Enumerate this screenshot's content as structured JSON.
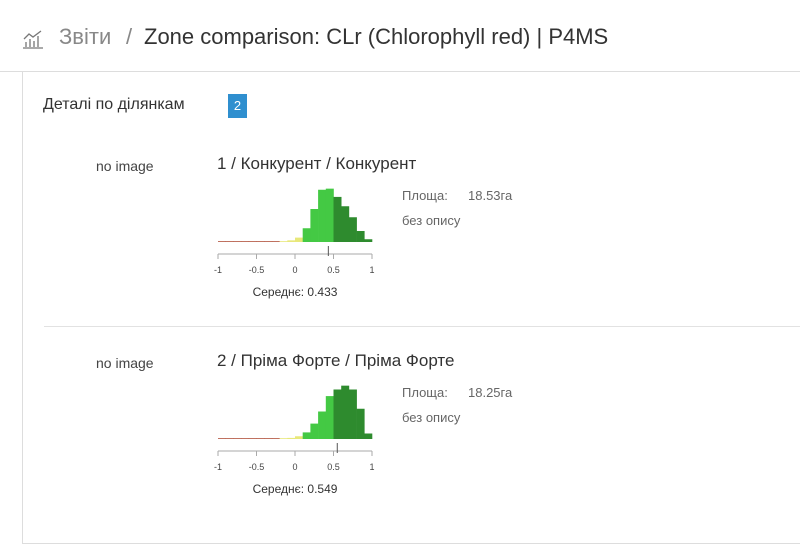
{
  "header": {
    "breadcrumb_root": "Звіти",
    "separator": "/",
    "page_title": "Zone comparison: CLr (Chlorophyll red) | P4MS"
  },
  "section": {
    "title": "Деталі по ділянкам",
    "count": 2
  },
  "zones": [
    {
      "image": "no image",
      "title": "1 / Конкурент / Конкурент",
      "area_label": "Площа:",
      "area": "18.53га",
      "description": "без опису",
      "chart_data": {
        "type": "histogram",
        "bins": [
          -1,
          -0.9,
          -0.8,
          -0.7,
          -0.6,
          -0.5,
          -0.4,
          -0.3,
          -0.2,
          -0.1,
          0,
          0.1,
          0.2,
          0.3,
          0.4,
          0.5,
          0.6,
          0.7,
          0.8,
          0.9,
          1
        ],
        "values": [
          0,
          0,
          0.01,
          0.01,
          0.01,
          0.01,
          0.01,
          0.01,
          0.01,
          0.03,
          0.08,
          0.25,
          0.6,
          0.95,
          0.97,
          0.82,
          0.65,
          0.45,
          0.2,
          0.05
        ],
        "colors": [
          "#b0503a",
          "#b0503a",
          "#b0503a",
          "#b0503a",
          "#b0503a",
          "#b0503a",
          "#b0503a",
          "#b0503a",
          "#e8e87a",
          "#e8e87a",
          "#e8e87a",
          "#44c944",
          "#44c944",
          "#44c944",
          "#44c944",
          "#2e8b2e",
          "#2e8b2e",
          "#2e8b2e",
          "#2e8b2e",
          "#2e8b2e"
        ],
        "xlim": [
          -1,
          1
        ],
        "ylim": [
          0,
          1
        ],
        "xticks": [
          -1,
          -0.5,
          0,
          0.5,
          1
        ],
        "mean": 0.433,
        "mean_label": "Середнє: 0.433"
      }
    },
    {
      "image": "no image",
      "title": "2 / Пріма Форте / Пріма Форте",
      "area_label": "Площа:",
      "area": "18.25га",
      "description": "без опису",
      "chart_data": {
        "type": "histogram",
        "bins": [
          -1,
          -0.9,
          -0.8,
          -0.7,
          -0.6,
          -0.5,
          -0.4,
          -0.3,
          -0.2,
          -0.1,
          0,
          0.1,
          0.2,
          0.3,
          0.4,
          0.5,
          0.6,
          0.7,
          0.8,
          0.9,
          1
        ],
        "values": [
          0,
          0,
          0.01,
          0.01,
          0.01,
          0.01,
          0.01,
          0.01,
          0.01,
          0.02,
          0.05,
          0.12,
          0.28,
          0.5,
          0.78,
          0.9,
          0.97,
          0.9,
          0.55,
          0.1
        ],
        "colors": [
          "#b0503a",
          "#b0503a",
          "#b0503a",
          "#b0503a",
          "#b0503a",
          "#b0503a",
          "#b0503a",
          "#b0503a",
          "#e8e87a",
          "#e8e87a",
          "#e8e87a",
          "#44c944",
          "#44c944",
          "#44c944",
          "#44c944",
          "#2e8b2e",
          "#2e8b2e",
          "#2e8b2e",
          "#2e8b2e",
          "#2e8b2e"
        ],
        "xlim": [
          -1,
          1
        ],
        "ylim": [
          0,
          1
        ],
        "xticks": [
          -1,
          -0.5,
          0,
          0.5,
          1
        ],
        "mean": 0.549,
        "mean_label": "Середнє: 0.549"
      }
    }
  ]
}
